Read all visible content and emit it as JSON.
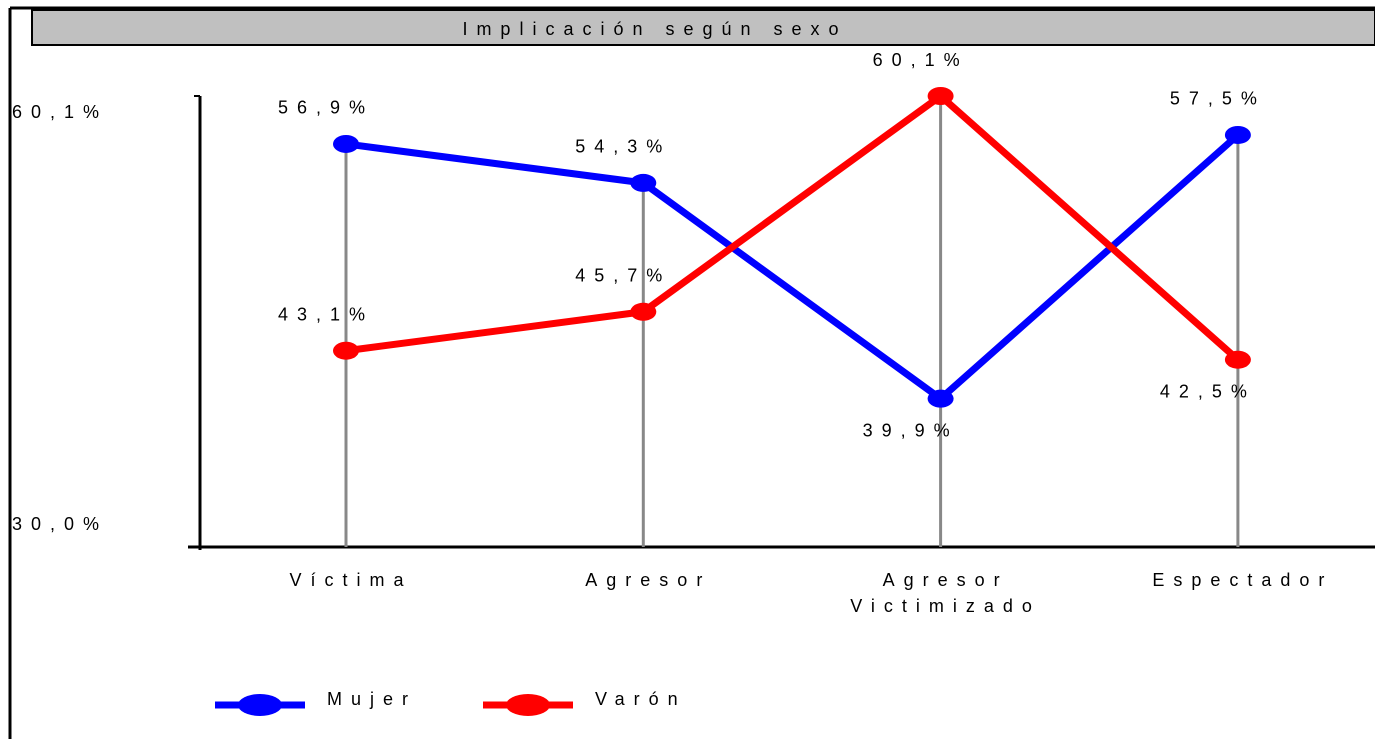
{
  "chart_data": {
    "type": "line",
    "title": "Implicación según sexo",
    "categories": [
      "Víctima",
      "Agresor",
      "Agresor Victimizado",
      "Espectador"
    ],
    "series": [
      {
        "name": "Mujer",
        "color": "#0000ff",
        "values": [
          56.9,
          54.3,
          39.9,
          57.5
        ],
        "value_labels": [
          "56,9%",
          "54,3%",
          "39,9%",
          "57,5%"
        ]
      },
      {
        "name": "Varón",
        "color": "#ff0000",
        "values": [
          43.1,
          45.7,
          60.1,
          42.5
        ],
        "value_labels": [
          "43,1%",
          "45,7%",
          "60,1%",
          "42,5%"
        ]
      }
    ],
    "ylim": [
      30,
      60.1
    ],
    "yticks": [
      {
        "value": 60.1,
        "label": "60,1%"
      },
      {
        "value": 30,
        "label": "30,0%"
      }
    ],
    "legend": "bottom"
  }
}
